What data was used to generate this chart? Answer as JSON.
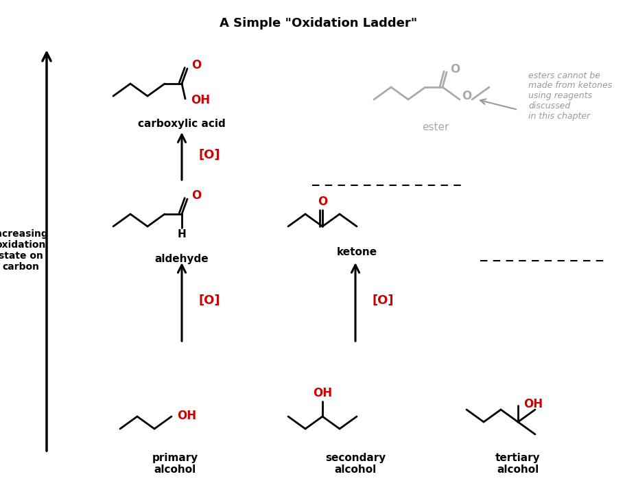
{
  "title": "A Simple \"Oxidation Ladder\"",
  "title_fontsize": 13,
  "title_fontweight": "bold",
  "background_color": "#ffffff",
  "black": "#000000",
  "red": "#cc0000",
  "gray": "#aaaaaa",
  "dark_gray": "#999999",
  "left_label": "Increasing\noxidation\nstate on\ncarbon",
  "ester_note": "esters cannot be\nmade from ketones\nusing reagents\ndiscussed\nin this chapter",
  "oxidant_label": "[O]",
  "mol_label_fontsize": 11,
  "oxidant_fontsize": 13,
  "note_fontsize": 9
}
